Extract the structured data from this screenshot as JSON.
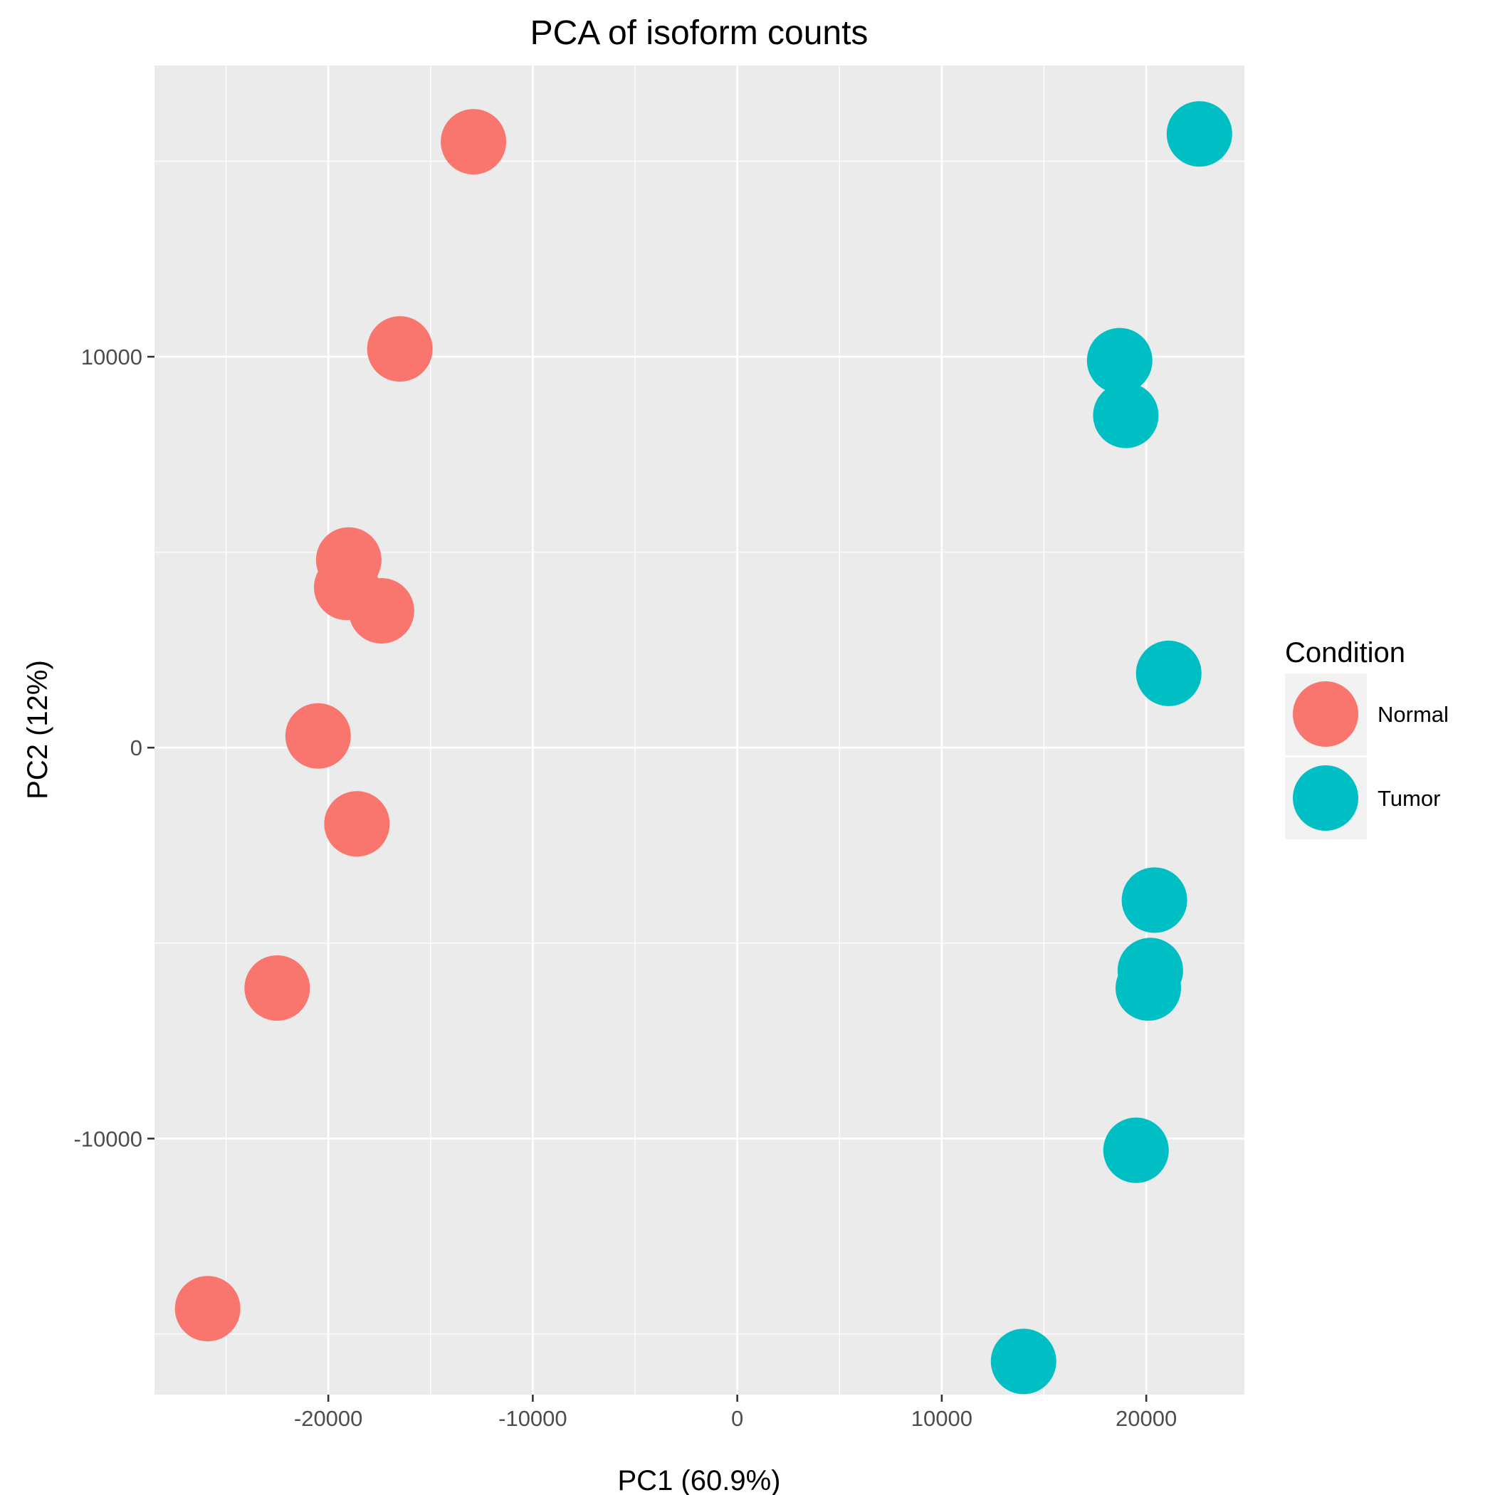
{
  "chart_data": {
    "type": "scatter",
    "title": "PCA of isoform counts",
    "xlabel": "PC1 (60.9%)",
    "ylabel": "PC2 (12%)",
    "xlim": [
      -28500,
      24800
    ],
    "ylim": [
      -16550,
      17450
    ],
    "x_ticks": [
      -20000,
      -10000,
      0,
      10000,
      20000
    ],
    "x_tick_labels": [
      "-20000",
      "-10000",
      "0",
      "10000",
      "20000"
    ],
    "y_ticks": [
      -10000,
      0,
      10000
    ],
    "y_tick_labels": [
      "-10000",
      "0",
      "10000"
    ],
    "grid": true,
    "legend": {
      "title": "Condition",
      "placement": "right",
      "entries": [
        {
          "label": "Normal",
          "color": "#F8766D"
        },
        {
          "label": "Tumor",
          "color": "#00BFC4"
        }
      ]
    },
    "series": [
      {
        "name": "Normal",
        "color": "#F8766D",
        "points": [
          {
            "x": -12900,
            "y": 15500
          },
          {
            "x": -16500,
            "y": 10200
          },
          {
            "x": -19000,
            "y": 4800
          },
          {
            "x": -19100,
            "y": 4100
          },
          {
            "x": -17400,
            "y": 3500
          },
          {
            "x": -20500,
            "y": 300
          },
          {
            "x": -18600,
            "y": -1950
          },
          {
            "x": -22500,
            "y": -6150
          },
          {
            "x": -25900,
            "y": -14350
          }
        ]
      },
      {
        "name": "Tumor",
        "color": "#00BFC4",
        "points": [
          {
            "x": 22600,
            "y": 15700
          },
          {
            "x": 18700,
            "y": 9900
          },
          {
            "x": 19000,
            "y": 8500
          },
          {
            "x": 21100,
            "y": 1900
          },
          {
            "x": 20400,
            "y": -3900
          },
          {
            "x": 20200,
            "y": -5700
          },
          {
            "x": 20100,
            "y": -6150
          },
          {
            "x": 19500,
            "y": -10300
          },
          {
            "x": 14000,
            "y": -15700
          }
        ]
      }
    ]
  }
}
